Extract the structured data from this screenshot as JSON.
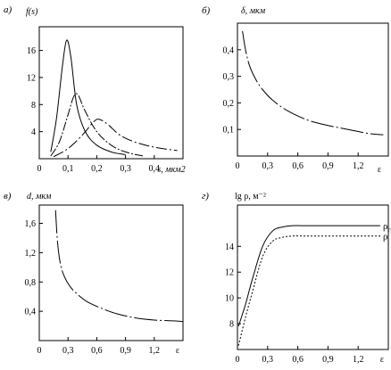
{
  "chart_data": [
    {
      "type": "line",
      "panel_label": "а)",
      "ylabel": "f(s)",
      "xlabel": "s, мкм2",
      "xlim": [
        0,
        0.5
      ],
      "ylim": [
        0,
        19.5
      ],
      "x_ticks": [
        {
          "v": 0,
          "t": "0"
        },
        {
          "v": 0.1,
          "t": "0,1"
        },
        {
          "v": 0.2,
          "t": "0,2"
        },
        {
          "v": 0.3,
          "t": "0,3"
        },
        {
          "v": 0.4,
          "t": "0,4"
        }
      ],
      "y_ticks": [
        {
          "v": 4,
          "t": "4"
        },
        {
          "v": 8,
          "t": "8"
        },
        {
          "v": 12,
          "t": "12"
        },
        {
          "v": 16,
          "t": "16"
        }
      ],
      "series": [
        {
          "x": [
            0.04,
            0.06,
            0.08,
            0.095,
            0.11,
            0.13,
            0.16,
            0.2,
            0.25,
            0.3
          ],
          "y": [
            1.0,
            6.0,
            13.5,
            17.5,
            15.0,
            8.0,
            4.0,
            2.0,
            1.0,
            0.6
          ]
        },
        {
          "x": [
            0.04,
            0.07,
            0.1,
            0.12,
            0.135,
            0.16,
            0.2,
            0.25,
            0.3,
            0.36
          ],
          "y": [
            0.4,
            2.5,
            6.5,
            9.2,
            9.4,
            7.0,
            4.0,
            2.0,
            1.0,
            0.4
          ]
        },
        {
          "x": [
            0.05,
            0.1,
            0.15,
            0.19,
            0.21,
            0.24,
            0.28,
            0.33,
            0.4,
            0.48
          ],
          "y": [
            0.3,
            1.5,
            3.5,
            5.5,
            5.8,
            5.0,
            3.5,
            2.5,
            1.7,
            1.2
          ]
        }
      ]
    },
    {
      "type": "line",
      "panel_label": "б)",
      "ylabel": "δ, мкм",
      "xlabel": "ε",
      "xlim": [
        0,
        1.5
      ],
      "ylim": [
        0,
        0.5
      ],
      "x_ticks": [
        {
          "v": 0,
          "t": "0"
        },
        {
          "v": 0.3,
          "t": "0,3"
        },
        {
          "v": 0.6,
          "t": "0,6"
        },
        {
          "v": 0.9,
          "t": "0,9"
        },
        {
          "v": 1.2,
          "t": "1,2"
        }
      ],
      "y_ticks": [
        {
          "v": 0.1,
          "t": "0,1"
        },
        {
          "v": 0.2,
          "t": "0,2"
        },
        {
          "v": 0.3,
          "t": "0,3"
        },
        {
          "v": 0.4,
          "t": "0,4"
        }
      ],
      "series": [
        {
          "x": [
            0.05,
            0.08,
            0.12,
            0.18,
            0.25,
            0.35,
            0.5,
            0.7,
            0.9,
            1.1,
            1.3,
            1.45
          ],
          "y": [
            0.47,
            0.4,
            0.34,
            0.29,
            0.25,
            0.21,
            0.17,
            0.135,
            0.115,
            0.1,
            0.085,
            0.08
          ]
        }
      ]
    },
    {
      "type": "line",
      "panel_label": "в)",
      "ylabel": "d, мкм",
      "xlabel": "ε",
      "xlim": [
        0,
        1.5
      ],
      "ylim": [
        0,
        1.85
      ],
      "x_ticks": [
        {
          "v": 0,
          "t": "0"
        },
        {
          "v": 0.3,
          "t": "0,3"
        },
        {
          "v": 0.6,
          "t": "0,6"
        },
        {
          "v": 0.9,
          "t": "0,9"
        },
        {
          "v": 1.2,
          "t": "1,2"
        }
      ],
      "y_ticks": [
        {
          "v": 0.4,
          "t": "0,4"
        },
        {
          "v": 0.8,
          "t": "0,8"
        },
        {
          "v": 1.2,
          "t": "1,2"
        },
        {
          "v": 1.6,
          "t": "1,6"
        }
      ],
      "series": [
        {
          "x": [
            0.17,
            0.19,
            0.22,
            0.26,
            0.32,
            0.4,
            0.5,
            0.65,
            0.8,
            1.0,
            1.2,
            1.4,
            1.5
          ],
          "y": [
            1.78,
            1.35,
            1.05,
            0.88,
            0.74,
            0.63,
            0.53,
            0.44,
            0.37,
            0.31,
            0.28,
            0.27,
            0.26
          ]
        }
      ]
    },
    {
      "type": "line",
      "panel_label": "г)",
      "ylabel": "lg ρ, м⁻²",
      "xlabel": "ε",
      "xlim": [
        0,
        1.5
      ],
      "ylim": [
        6,
        17.2
      ],
      "x_ticks": [
        {
          "v": 0,
          "t": "0"
        },
        {
          "v": 0.3,
          "t": "0,3"
        },
        {
          "v": 0.6,
          "t": "0,6"
        },
        {
          "v": 0.9,
          "t": "0,9"
        },
        {
          "v": 1.2,
          "t": "1,2"
        }
      ],
      "y_ticks": [
        {
          "v": 8,
          "t": "8"
        },
        {
          "v": 10,
          "t": "10"
        },
        {
          "v": 12,
          "t": "12"
        },
        {
          "v": 14,
          "t": "14"
        }
      ],
      "series": [
        {
          "name": "ρгр",
          "label_main": "ρ",
          "label_sub": "гр",
          "x": [
            0.01,
            0.08,
            0.15,
            0.25,
            0.35,
            0.45,
            0.55,
            0.7,
            1.0,
            1.3,
            1.42
          ],
          "y": [
            7.8,
            9.5,
            11.5,
            14.0,
            15.2,
            15.5,
            15.6,
            15.6,
            15.6,
            15.6,
            15.6
          ]
        },
        {
          "name": "ρ",
          "label_main": "ρ",
          "label_sub": "",
          "x": [
            0.01,
            0.08,
            0.15,
            0.25,
            0.35,
            0.45,
            0.55,
            0.7,
            1.0,
            1.3,
            1.42
          ],
          "y": [
            6.3,
            8.5,
            10.5,
            13.2,
            14.4,
            14.7,
            14.8,
            14.8,
            14.8,
            14.8,
            14.8
          ]
        }
      ]
    }
  ]
}
